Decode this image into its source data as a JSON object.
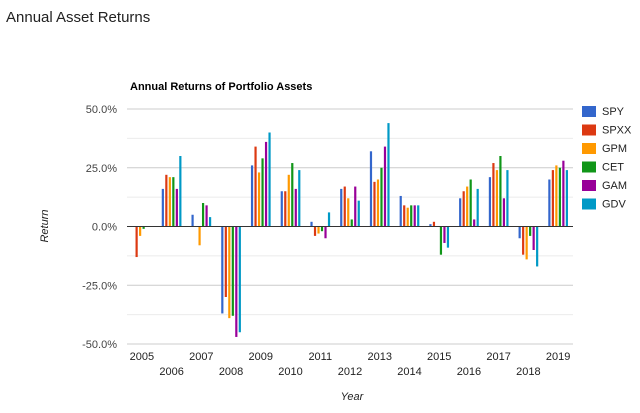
{
  "page": {
    "heading": "Annual Asset Returns"
  },
  "chart_data": {
    "type": "bar",
    "title": "Annual Returns of Portfolio Assets",
    "xlabel": "Year",
    "ylabel": "Return",
    "ylim": [
      -0.5,
      0.5
    ],
    "yticks": [
      0.5,
      0.25,
      0.0,
      -0.25,
      -0.5
    ],
    "ytick_labels": [
      "50.0%",
      "25.0%",
      "0.0%",
      "-25.0%",
      "-50.0%"
    ],
    "grid": true,
    "legend_position": "right",
    "categories": [
      "2005",
      "2006",
      "2007",
      "2008",
      "2009",
      "2010",
      "2011",
      "2012",
      "2013",
      "2014",
      "2015",
      "2016",
      "2017",
      "2018",
      "2019"
    ],
    "series": [
      {
        "name": "SPY",
        "color": "#3366cc",
        "values": [
          0.0,
          0.16,
          0.05,
          -0.37,
          0.26,
          0.15,
          0.02,
          0.16,
          0.32,
          0.13,
          0.01,
          0.12,
          0.21,
          -0.05,
          0.2
        ]
      },
      {
        "name": "SPXX",
        "color": "#dc3912",
        "values": [
          -0.13,
          0.22,
          0.0,
          -0.3,
          0.34,
          0.15,
          -0.04,
          0.17,
          0.19,
          0.09,
          0.02,
          0.15,
          0.27,
          -0.12,
          0.24
        ]
      },
      {
        "name": "GPM",
        "color": "#ff9900",
        "values": [
          -0.04,
          0.21,
          -0.08,
          -0.39,
          0.23,
          0.22,
          -0.03,
          0.12,
          0.2,
          0.08,
          0.0,
          0.17,
          0.24,
          -0.14,
          0.26
        ]
      },
      {
        "name": "CET",
        "color": "#109618",
        "values": [
          -0.01,
          0.21,
          0.1,
          -0.38,
          0.29,
          0.27,
          -0.02,
          0.03,
          0.25,
          0.09,
          -0.12,
          0.2,
          0.3,
          -0.04,
          0.25
        ]
      },
      {
        "name": "GAM",
        "color": "#990099",
        "values": [
          0.0,
          0.16,
          0.09,
          -0.47,
          0.36,
          0.16,
          -0.05,
          0.17,
          0.34,
          0.09,
          -0.07,
          0.03,
          0.12,
          -0.1,
          0.28
        ]
      },
      {
        "name": "GDV",
        "color": "#0099c6",
        "values": [
          0.0,
          0.3,
          0.04,
          -0.45,
          0.4,
          0.24,
          0.06,
          0.11,
          0.44,
          0.09,
          -0.09,
          0.16,
          0.24,
          -0.17,
          0.24
        ]
      }
    ]
  }
}
